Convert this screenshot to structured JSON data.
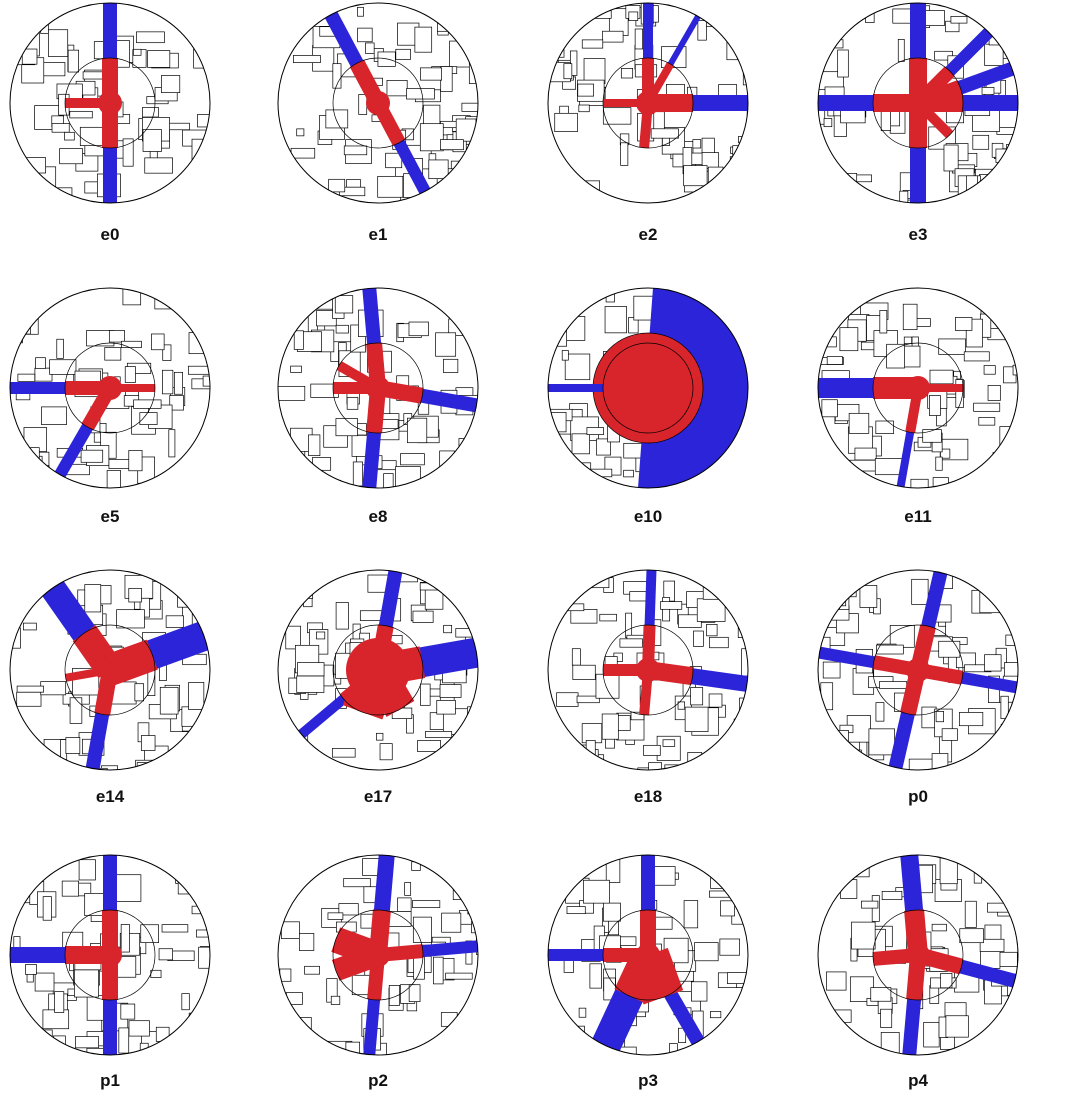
{
  "panels": [
    {
      "label": "e0"
    },
    {
      "label": "e1"
    },
    {
      "label": "e2"
    },
    {
      "label": "e3"
    },
    {
      "label": "e5"
    },
    {
      "label": "e8"
    },
    {
      "label": "e10"
    },
    {
      "label": "e11"
    },
    {
      "label": "e14"
    },
    {
      "label": "e17"
    },
    {
      "label": "e18"
    },
    {
      "label": "p0"
    },
    {
      "label": "p1"
    },
    {
      "label": "p2"
    },
    {
      "label": "p3"
    },
    {
      "label": "p4"
    }
  ]
}
